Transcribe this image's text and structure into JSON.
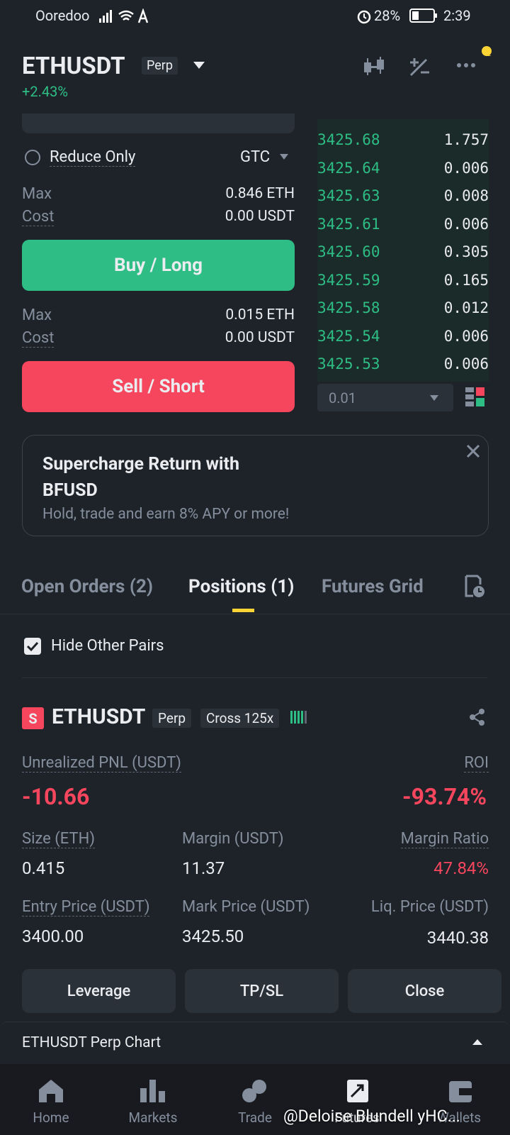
{
  "status_bar": {
    "carrier": "Ooredoo",
    "battery": "28%",
    "time": "2:39"
  },
  "header": {
    "symbol": "ETHUSDT",
    "badge": "Perp",
    "change": "+2.43%"
  },
  "order_form": {
    "reduce_only": "Reduce Only",
    "time_in_force": "GTC",
    "buy": {
      "max_label": "Max",
      "max_value": "0.846 ETH",
      "cost_label": "Cost",
      "cost_value": "0.00 USDT",
      "button": "Buy / Long"
    },
    "sell": {
      "max_label": "Max",
      "max_value": "0.015 ETH",
      "cost_label": "Cost",
      "cost_value": "0.00 USDT",
      "button": "Sell / Short"
    }
  },
  "order_book": {
    "rows": [
      [
        "3425.68",
        "1.757"
      ],
      [
        "3425.64",
        "0.006"
      ],
      [
        "3425.63",
        "0.008"
      ],
      [
        "3425.61",
        "0.006"
      ],
      [
        "3425.60",
        "0.305"
      ],
      [
        "3425.59",
        "0.165"
      ],
      [
        "3425.58",
        "0.012"
      ],
      [
        "3425.54",
        "0.006"
      ],
      [
        "3425.53",
        "0.006"
      ]
    ],
    "precision": "0.01"
  },
  "promo": {
    "title": "Supercharge Return with BFUSD",
    "subtitle": "Hold, trade and earn 8% APY or more!"
  },
  "tabs": [
    "Open Orders (2)",
    "Positions (1)",
    "Futures Grid"
  ],
  "filter": {
    "hide_other_pairs": "Hide Other Pairs"
  },
  "position": {
    "side": "S",
    "symbol": "ETHUSDT",
    "badges": [
      "Perp",
      "Cross 125x"
    ],
    "unrealized_pnl": {
      "label": "Unrealized PNL (USDT)",
      "value": "-10.66"
    },
    "roi": {
      "label": "ROI",
      "value": "-93.74%"
    },
    "size": {
      "label": "Size (ETH)",
      "value": "0.415"
    },
    "margin": {
      "label": "Margin (USDT)",
      "value": "11.37"
    },
    "margin_ratio": {
      "label": "Margin Ratio",
      "value": "47.84%"
    },
    "entry_price": {
      "label": "Entry Price (USDT)",
      "value": "3400.00"
    },
    "mark_price": {
      "label": "Mark Price (USDT)",
      "value": "3425.50"
    },
    "liq_price": {
      "label": "Liq. Price (USDT)",
      "value": "3440.38"
    }
  },
  "actions": [
    "Leverage",
    "TP/SL",
    "Close"
  ],
  "chart_bar": {
    "label": "ETHUSDT Perp Chart"
  },
  "nav": [
    "Home",
    "Markets",
    "Trade",
    "Futures",
    "Wallets"
  ],
  "watermark": "@Deloise Blundell yHC..."
}
